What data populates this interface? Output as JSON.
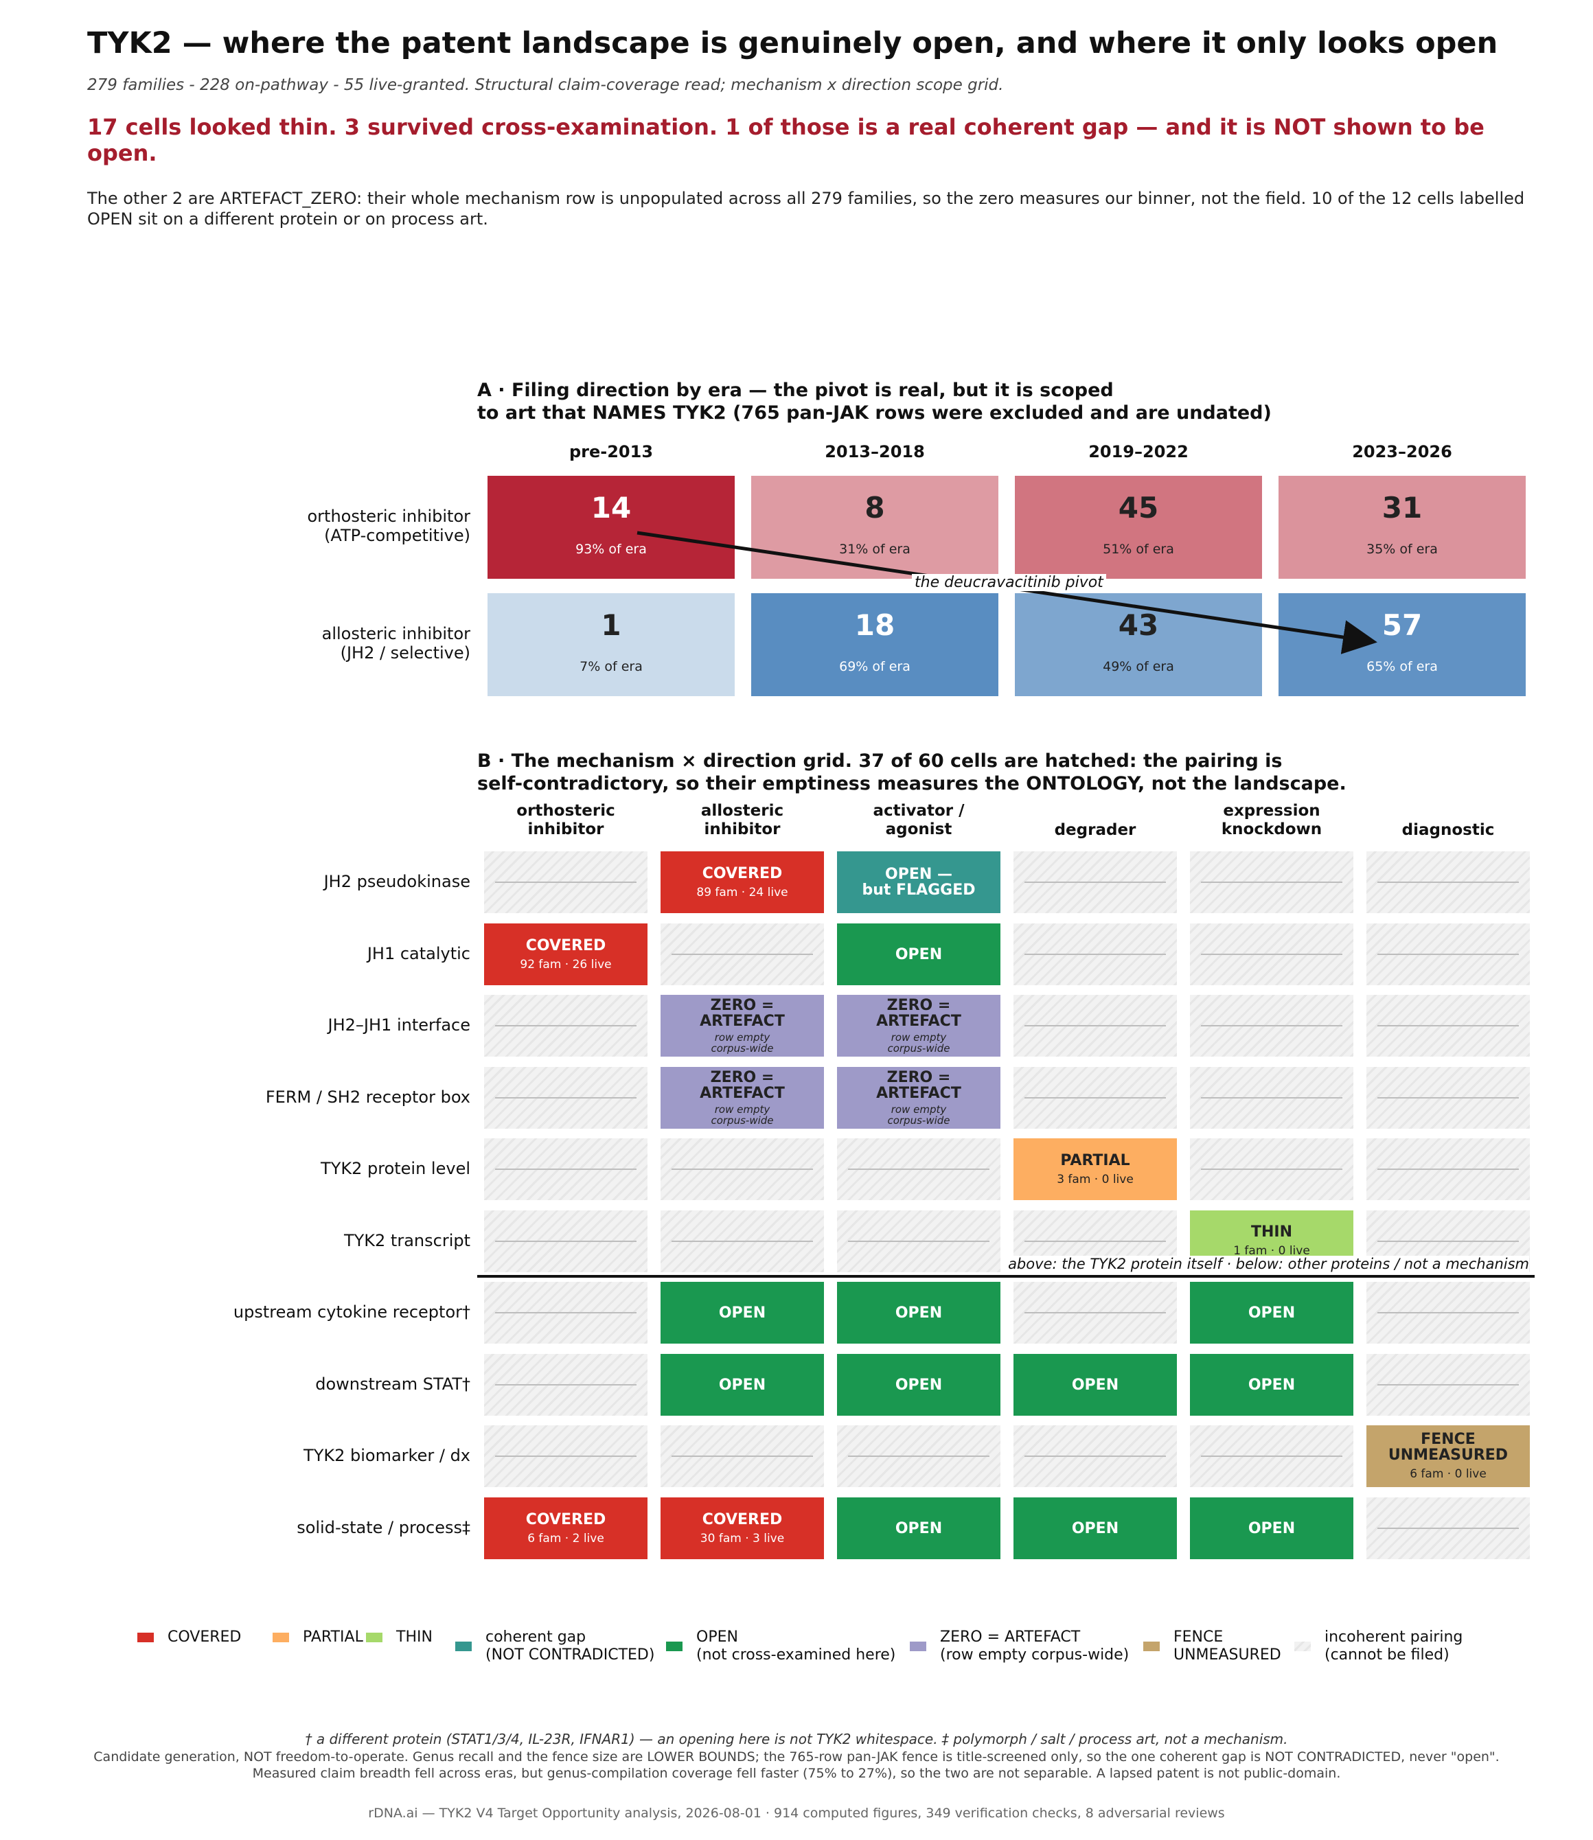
{
  "title": "TYK2 — where the patent landscape is genuinely open, and where it only looks open",
  "subtitle": "279 families - 228 on-pathway - 55 live-granted.  Structural claim-coverage read; mechanism x direction scope grid.",
  "headline": "17 cells looked thin. 3 survived cross-examination. 1 of those is a real coherent gap — and it is NOT shown to be open.",
  "intro": "The other 2 are ARTEFACT_ZERO: their whole mechanism row is unpopulated across all 279 families, so the zero measures our binner, not the field. 10 of the 12 cells labelled OPEN sit on a different protein or on process art.",
  "colors": {
    "covered": "#d73027",
    "partial": "#fdae61",
    "thin": "#a6d96a",
    "coherent_gap": "#35978f",
    "open": "#1a9850",
    "artefact": "#9e9ac8",
    "fence": "#c4a46b"
  },
  "chart_data": [
    {
      "type": "heatmap",
      "title": "A · Filing direction by era — the pivot is real, but it is scoped\nto art that NAMES TYK2 (765 pan-JAK rows were excluded and are undated)",
      "eras": [
        "pre-2013",
        "2013–2018",
        "2019–2022",
        "2023–2026"
      ],
      "rows": [
        {
          "label": "orthosteric inhibitor\n(ATP-competitive)",
          "counts": [
            14,
            8,
            45,
            31
          ],
          "pct_labels": [
            "93% of era",
            "31% of era",
            "51% of era",
            "35% of era"
          ],
          "pct_values": [
            93,
            31,
            51,
            35
          ],
          "hue": "#b2182b"
        },
        {
          "label": "allosteric inhibitor\n(JH2 / selective)",
          "counts": [
            1,
            18,
            43,
            57
          ],
          "pct_labels": [
            "7% of era",
            "69% of era",
            "49% of era",
            "65% of era"
          ],
          "pct_values": [
            7,
            69,
            49,
            65
          ],
          "hue": "#2166ac"
        }
      ],
      "annotation": "the deucravacitinib pivot"
    },
    {
      "type": "table",
      "title": "B · The mechanism × direction grid. 37 of 60 cells are hatched: the pairing is\nself-contradictory, so their emptiness measures the ONTOLOGY, not the landscape.",
      "columns": [
        "orthosteric\ninhibitor",
        "allosteric\ninhibitor",
        "activator /\nagonist",
        "degrader",
        "expression\nknockdown",
        "diagnostic"
      ],
      "rows": [
        {
          "label": "JH2 pseudokinase",
          "cells": [
            {
              "status": "incoherent"
            },
            {
              "status": "covered",
              "label": "COVERED",
              "sub": "89 fam  ·  24 live"
            },
            {
              "status": "coherent_gap",
              "label": "OPEN —\nbut FLAGGED"
            },
            {
              "status": "incoherent"
            },
            {
              "status": "incoherent"
            },
            {
              "status": "incoherent"
            }
          ]
        },
        {
          "label": "JH1 catalytic",
          "cells": [
            {
              "status": "covered",
              "label": "COVERED",
              "sub": "92 fam  ·  26 live"
            },
            {
              "status": "incoherent"
            },
            {
              "status": "open",
              "label": "OPEN"
            },
            {
              "status": "incoherent"
            },
            {
              "status": "incoherent"
            },
            {
              "status": "incoherent"
            }
          ]
        },
        {
          "label": "JH2–JH1 interface",
          "cells": [
            {
              "status": "incoherent"
            },
            {
              "status": "artefact",
              "label": "ZERO =\nARTEFACT",
              "note": "row empty\ncorpus-wide"
            },
            {
              "status": "artefact",
              "label": "ZERO =\nARTEFACT",
              "note": "row empty\ncorpus-wide"
            },
            {
              "status": "incoherent"
            },
            {
              "status": "incoherent"
            },
            {
              "status": "incoherent"
            }
          ]
        },
        {
          "label": "FERM / SH2 receptor box",
          "cells": [
            {
              "status": "incoherent"
            },
            {
              "status": "artefact",
              "label": "ZERO =\nARTEFACT",
              "note": "row empty\ncorpus-wide"
            },
            {
              "status": "artefact",
              "label": "ZERO =\nARTEFACT",
              "note": "row empty\ncorpus-wide"
            },
            {
              "status": "incoherent"
            },
            {
              "status": "incoherent"
            },
            {
              "status": "incoherent"
            }
          ]
        },
        {
          "label": "TYK2 protein level",
          "cells": [
            {
              "status": "incoherent"
            },
            {
              "status": "incoherent"
            },
            {
              "status": "incoherent"
            },
            {
              "status": "partial",
              "label": "PARTIAL",
              "sub": "3 fam  ·  0 live"
            },
            {
              "status": "incoherent"
            },
            {
              "status": "incoherent"
            }
          ]
        },
        {
          "label": "TYK2 transcript",
          "cells": [
            {
              "status": "incoherent"
            },
            {
              "status": "incoherent"
            },
            {
              "status": "incoherent"
            },
            {
              "status": "incoherent"
            },
            {
              "status": "thin",
              "label": "THIN",
              "sub": "1 fam  ·  0 live"
            },
            {
              "status": "incoherent"
            }
          ]
        },
        {
          "label": "upstream cytokine receptor†",
          "cells": [
            {
              "status": "incoherent"
            },
            {
              "status": "open",
              "label": "OPEN"
            },
            {
              "status": "open",
              "label": "OPEN"
            },
            {
              "status": "incoherent"
            },
            {
              "status": "open",
              "label": "OPEN"
            },
            {
              "status": "incoherent"
            }
          ]
        },
        {
          "label": "downstream STAT†",
          "cells": [
            {
              "status": "incoherent"
            },
            {
              "status": "open",
              "label": "OPEN"
            },
            {
              "status": "open",
              "label": "OPEN"
            },
            {
              "status": "open",
              "label": "OPEN"
            },
            {
              "status": "open",
              "label": "OPEN"
            },
            {
              "status": "incoherent"
            }
          ]
        },
        {
          "label": "TYK2 biomarker / dx",
          "cells": [
            {
              "status": "incoherent"
            },
            {
              "status": "incoherent"
            },
            {
              "status": "incoherent"
            },
            {
              "status": "incoherent"
            },
            {
              "status": "incoherent"
            },
            {
              "status": "fence",
              "label": "FENCE\nUNMEASURED",
              "sub": "6 fam  ·  0 live"
            }
          ]
        },
        {
          "label": "solid-state / process‡",
          "cells": [
            {
              "status": "covered",
              "label": "COVERED",
              "sub": "6 fam  ·  2 live"
            },
            {
              "status": "covered",
              "label": "COVERED",
              "sub": "30 fam  ·  3 live"
            },
            {
              "status": "open",
              "label": "OPEN"
            },
            {
              "status": "open",
              "label": "OPEN"
            },
            {
              "status": "open",
              "label": "OPEN"
            },
            {
              "status": "incoherent"
            }
          ]
        }
      ],
      "divider_label": "above: the TYK2 protein itself   ·   below: other proteins / not a mechanism",
      "legend": [
        {
          "status": "covered",
          "label": "COVERED"
        },
        {
          "status": "partial",
          "label": "PARTIAL"
        },
        {
          "status": "thin",
          "label": "THIN"
        },
        {
          "status": "coherent_gap",
          "label": "coherent gap\n(NOT CONTRADICTED)"
        },
        {
          "status": "open",
          "label": "OPEN\n(not cross-examined here)"
        },
        {
          "status": "artefact",
          "label": "ZERO = ARTEFACT\n(row empty corpus-wide)"
        },
        {
          "status": "fence",
          "label": "FENCE\nUNMEASURED"
        },
        {
          "status": "incoherent",
          "label": "incoherent pairing\n(cannot be filed)"
        }
      ]
    }
  ],
  "footnotes": {
    "symbols": "† a different protein (STAT1/3/4, IL-23R, IFNAR1) — an opening here is not TYK2 whitespace.   ‡ polymorph / salt / process art, not a mechanism.",
    "caveat": "Candidate generation, NOT freedom-to-operate. Genus recall and the fence size are LOWER BOUNDS; the 765-row pan-JAK fence is title-screened only, so the one coherent gap is NOT CONTRADICTED, never \"open\". Measured claim breadth fell across eras, but genus-compilation coverage fell faster (75% to 27%), so the two are not separable. A lapsed patent is not public-domain.",
    "credit": "rDNA.ai — TYK2 V4 Target Opportunity analysis, 2026-08-01 · 914 computed figures, 349 verification checks, 8 adversarial reviews"
  }
}
